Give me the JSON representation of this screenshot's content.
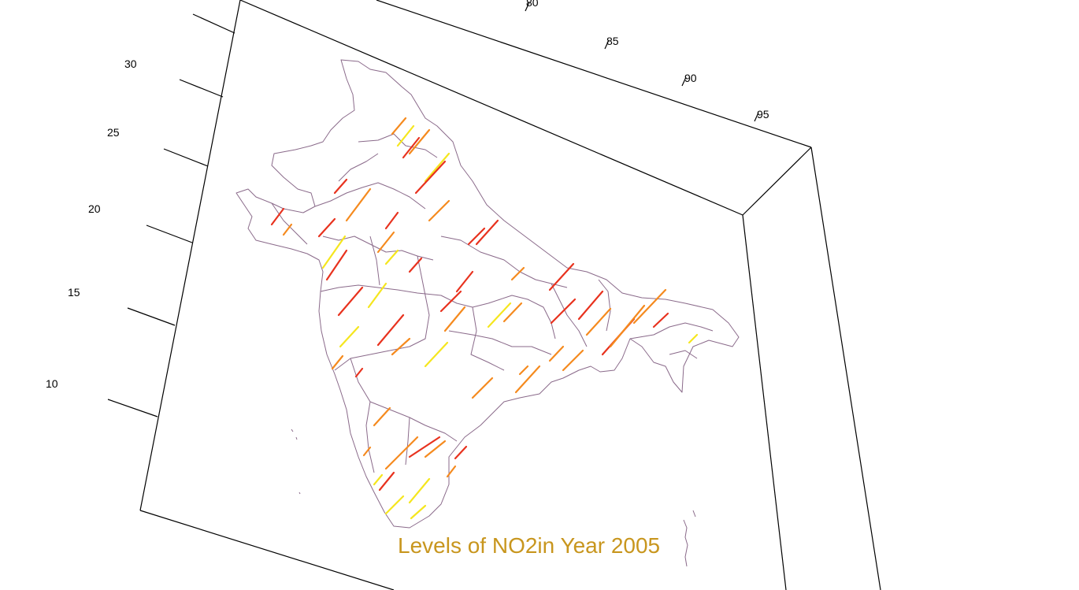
{
  "figure": {
    "caption": "Levels of NO2in Year 2005",
    "caption_color": "#c8961e",
    "frame_color": "#000000",
    "boundary_color": "#8a6a8a"
  },
  "axes": {
    "longitude_ticks": [
      "80",
      "85",
      "90",
      "95"
    ],
    "latitude_ticks": [
      "30",
      "25",
      "20",
      "15",
      "10"
    ]
  },
  "legend_colors": {
    "high": "#e8321e",
    "medium": "#f58a1e",
    "low": "#f5e61e"
  },
  "icons": [
    "map-plot"
  ]
}
